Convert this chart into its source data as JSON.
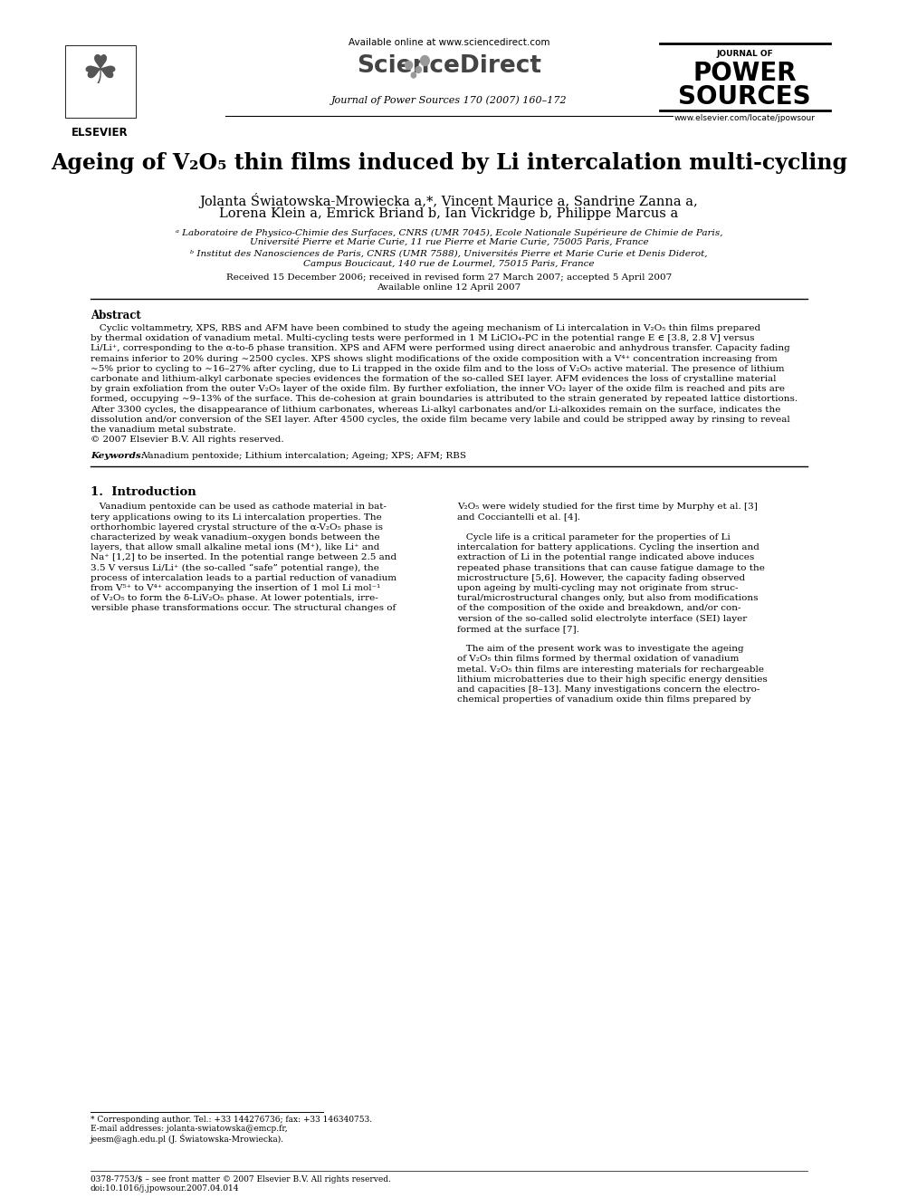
{
  "bg_color": "#ffffff",
  "title": "Ageing of V₂O₅ thin films induced by Li intercalation multi-cycling",
  "journal_header": "Journal of Power Sources 170 (2007) 160–172",
  "available_online": "Available online at www.sciencedirect.com",
  "journal_url": "www.elsevier.com/locate/jpowsour",
  "elsevier_label": "ELSEVIER",
  "authors_line1": "Jolanta Światowska-Mrowiecka a,*, Vincent Maurice a, Sandrine Zanna a,",
  "authors_line2": "Lorena Klein a, Emrick Briand b, Ian Vickridge b, Philippe Marcus a",
  "affil_a": "ᵃ Laboratoire de Physico-Chimie des Surfaces, CNRS (UMR 7045), Ecole Nationale Supérieure de Chimie de Paris,",
  "affil_a2": "Université Pierre et Marie Curie, 11 rue Pierre et Marie Curie, 75005 Paris, France",
  "affil_b": "ᵇ Institut des Nanosciences de Paris, CNRS (UMR 7588), Universités Pierre et Marie Curie et Denis Diderot,",
  "affil_b2": "Campus Boucicaut, 140 rue de Lourmel, 75015 Paris, France",
  "received": "Received 15 December 2006; received in revised form 27 March 2007; accepted 5 April 2007",
  "available": "Available online 12 April 2007",
  "abstract_title": "Abstract",
  "keywords_label": "Keywords:",
  "keywords_text": "Vanadium pentoxide; Lithium intercalation; Ageing; XPS; AFM; RBS",
  "section1_title": "1.  Introduction",
  "footnote_star": "* Corresponding author. Tel.: +33 144276736; fax: +33 146340753.",
  "footnote_email1": "E-mail addresses: jolanta-swiatowska@emcp.fr,",
  "footnote_email2": "jeesm@agh.edu.pl (J. Światowska-Mrowiecka).",
  "footer_issn": "0378-7753/$ – see front matter © 2007 Elsevier B.V. All rights reserved.",
  "footer_doi": "doi:10.1016/j.jpowsour.2007.04.014",
  "abs_lines": [
    "   Cyclic voltammetry, XPS, RBS and AFM have been combined to study the ageing mechanism of Li intercalation in V₂O₅ thin films prepared",
    "by thermal oxidation of vanadium metal. Multi-cycling tests were performed in 1 M LiClO₄-PC in the potential range E ∈ [3.8, 2.8 V] versus",
    "Li/Li⁺, corresponding to the α-to-δ phase transition. XPS and AFM were performed using direct anaerobic and anhydrous transfer. Capacity fading",
    "remains inferior to 20% during ∼2500 cycles. XPS shows slight modifications of the oxide composition with a V⁴⁺ concentration increasing from",
    "∼5% prior to cycling to ∼16–27% after cycling, due to Li trapped in the oxide film and to the loss of V₂O₅ active material. The presence of lithium",
    "carbonate and lithium-alkyl carbonate species evidences the formation of the so-called SEI layer. AFM evidences the loss of crystalline material",
    "by grain exfoliation from the outer V₂O₅ layer of the oxide film. By further exfoliation, the inner VO₂ layer of the oxide film is reached and pits are",
    "formed, occupying ∼9–13% of the surface. This de-cohesion at grain boundaries is attributed to the strain generated by repeated lattice distortions.",
    "After 3300 cycles, the disappearance of lithium carbonates, whereas Li-alkyl carbonates and/or Li-alkoxides remain on the surface, indicates the",
    "dissolution and/or conversion of the SEI layer. After 4500 cycles, the oxide film became very labile and could be stripped away by rinsing to reveal",
    "the vanadium metal substrate.",
    "© 2007 Elsevier B.V. All rights reserved."
  ],
  "col1_lines": [
    "   Vanadium pentoxide can be used as cathode material in bat-",
    "tery applications owing to its Li intercalation properties. The",
    "orthorhombic layered crystal structure of the α-V₂O₅ phase is",
    "characterized by weak vanadium–oxygen bonds between the",
    "layers, that allow small alkaline metal ions (M⁺), like Li⁺ and",
    "Na⁺ [1,2] to be inserted. In the potential range between 2.5 and",
    "3.5 V versus Li/Li⁺ (the so-called “safe” potential range), the",
    "process of intercalation leads to a partial reduction of vanadium",
    "from V⁵⁺ to V⁴⁺ accompanying the insertion of 1 mol Li mol⁻¹",
    "of V₂O₅ to form the δ-LiV₂O₅ phase. At lower potentials, irre-",
    "versible phase transformations occur. The structural changes of"
  ],
  "col2_lines": [
    "V₂O₅ were widely studied for the first time by Murphy et al. [3]",
    "and Cocciantelli et al. [4].",
    "",
    "   Cycle life is a critical parameter for the properties of Li",
    "intercalation for battery applications. Cycling the insertion and",
    "extraction of Li in the potential range indicated above induces",
    "repeated phase transitions that can cause fatigue damage to the",
    "microstructure [5,6]. However, the capacity fading observed",
    "upon ageing by multi-cycling may not originate from struc-",
    "tural/microstructural changes only, but also from modifications",
    "of the composition of the oxide and breakdown, and/or con-",
    "version of the so-called solid electrolyte interface (SEI) layer",
    "formed at the surface [7].",
    "",
    "   The aim of the present work was to investigate the ageing",
    "of V₂O₅ thin films formed by thermal oxidation of vanadium",
    "metal. V₂O₅ thin films are interesting materials for rechargeable",
    "lithium microbatteries due to their high specific energy densities",
    "and capacities [8–13]. Many investigations concern the electro-",
    "chemical properties of vanadium oxide thin films prepared by"
  ]
}
